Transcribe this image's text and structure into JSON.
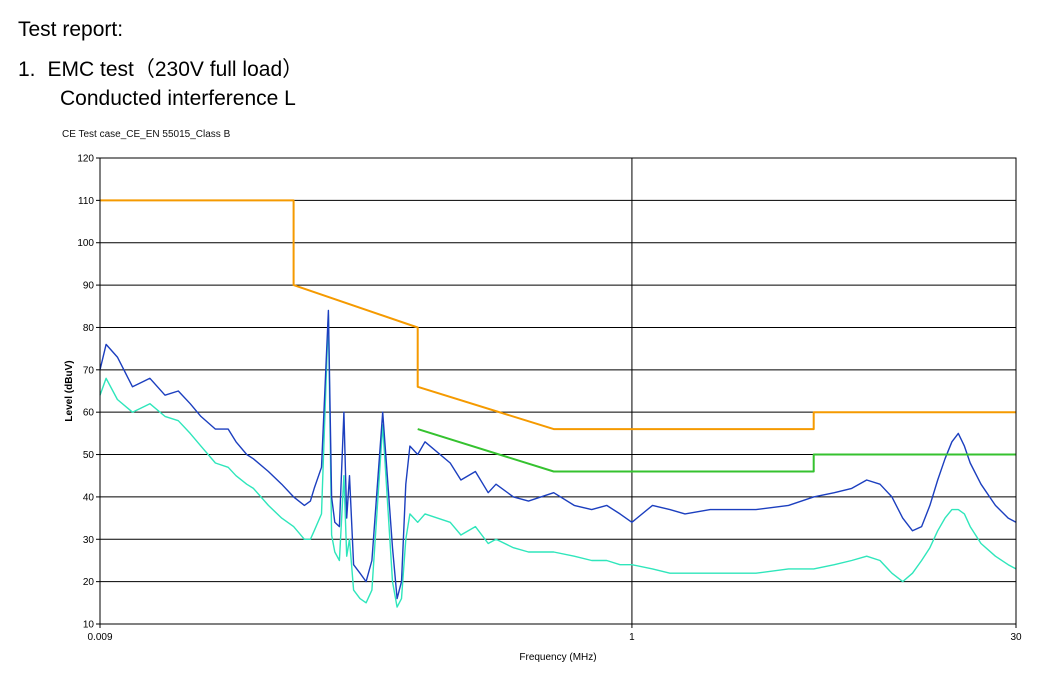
{
  "report": {
    "heading": "Test report:",
    "item_number": "1.",
    "item_title": "EMC test（230V full load）",
    "subtitle": "Conducted interference L"
  },
  "chart_data": {
    "type": "line",
    "title": "CE Test case_CE_EN 55015_Class B",
    "xlabel": "Frequency (MHz)",
    "ylabel": "Level (dBuV)",
    "xscale": "log",
    "xlim": [
      0.009,
      30
    ],
    "ylim": [
      10,
      120
    ],
    "yticks": [
      10,
      20,
      30,
      40,
      50,
      60,
      70,
      80,
      90,
      100,
      110,
      120
    ],
    "xtick_labels": [
      {
        "value": 0.009,
        "label": "0.009"
      },
      {
        "value": 1,
        "label": "1"
      },
      {
        "value": 30,
        "label": "30"
      }
    ],
    "grid": true,
    "colors": {
      "qp_limit": "#f59a00",
      "avg_limit": "#35c22f",
      "peak": "#1c3fbf",
      "average": "#2fe6bb",
      "grid": "#000000"
    },
    "series": [
      {
        "key": "qp_limit",
        "x": [
          0.009,
          0.05,
          0.05,
          0.15,
          0.15,
          0.5,
          0.5,
          5,
          5,
          30
        ],
        "y": [
          110,
          110,
          90,
          80,
          66,
          56,
          56,
          56,
          60,
          60
        ]
      },
      {
        "key": "avg_limit",
        "x": [
          0.15,
          0.5,
          0.5,
          5,
          5,
          30
        ],
        "y": [
          56,
          46,
          46,
          46,
          50,
          50
        ]
      },
      {
        "key": "peak",
        "x": [
          0.009,
          0.0095,
          0.0105,
          0.012,
          0.014,
          0.016,
          0.018,
          0.02,
          0.022,
          0.025,
          0.028,
          0.03,
          0.033,
          0.035,
          0.04,
          0.045,
          0.05,
          0.055,
          0.058,
          0.06,
          0.064,
          0.068,
          0.07,
          0.072,
          0.075,
          0.078,
          0.08,
          0.082,
          0.085,
          0.09,
          0.095,
          0.1,
          0.11,
          0.12,
          0.125,
          0.13,
          0.135,
          0.14,
          0.15,
          0.16,
          0.2,
          0.22,
          0.25,
          0.28,
          0.3,
          0.35,
          0.4,
          0.5,
          0.6,
          0.7,
          0.8,
          0.9,
          1.0,
          1.2,
          1.4,
          1.6,
          2,
          3,
          4,
          5,
          6,
          7,
          8,
          9,
          10,
          11,
          12,
          13,
          14,
          15,
          16,
          17,
          18,
          19,
          20,
          22,
          25,
          28,
          30
        ],
        "y": [
          70,
          76,
          73,
          66,
          68,
          64,
          65,
          62,
          59,
          56,
          56,
          53,
          50,
          49,
          46,
          43,
          40,
          38,
          39,
          42,
          47,
          84,
          40,
          34,
          33,
          60,
          35,
          45,
          24,
          22,
          20,
          25,
          60,
          28,
          16,
          20,
          43,
          52,
          50,
          53,
          48,
          44,
          46,
          41,
          43,
          40,
          39,
          41,
          38,
          37,
          38,
          36,
          34,
          38,
          37,
          36,
          37,
          37,
          38,
          40,
          41,
          42,
          44,
          43,
          40,
          35,
          32,
          33,
          38,
          44,
          49,
          53,
          55,
          52,
          48,
          43,
          38,
          35,
          34
        ]
      },
      {
        "key": "average",
        "x": [
          0.009,
          0.0095,
          0.0105,
          0.012,
          0.014,
          0.016,
          0.018,
          0.02,
          0.022,
          0.025,
          0.028,
          0.03,
          0.033,
          0.035,
          0.04,
          0.045,
          0.05,
          0.055,
          0.058,
          0.06,
          0.064,
          0.068,
          0.07,
          0.072,
          0.075,
          0.078,
          0.08,
          0.082,
          0.085,
          0.09,
          0.095,
          0.1,
          0.11,
          0.12,
          0.125,
          0.13,
          0.135,
          0.14,
          0.15,
          0.16,
          0.2,
          0.22,
          0.25,
          0.28,
          0.3,
          0.35,
          0.4,
          0.5,
          0.6,
          0.7,
          0.8,
          0.9,
          1.0,
          1.2,
          1.4,
          1.6,
          2,
          3,
          4,
          5,
          6,
          7,
          8,
          9,
          10,
          11,
          12,
          13,
          14,
          15,
          16,
          17,
          18,
          19,
          20,
          22,
          25,
          28,
          30
        ],
        "y": [
          64,
          68,
          63,
          60,
          62,
          59,
          58,
          55,
          52,
          48,
          47,
          45,
          43,
          42,
          38,
          35,
          33,
          30,
          30,
          32,
          36,
          83,
          31,
          27,
          25,
          45,
          26,
          30,
          18,
          16,
          15,
          18,
          57,
          20,
          14,
          16,
          30,
          36,
          34,
          36,
          34,
          31,
          33,
          29,
          30,
          28,
          27,
          27,
          26,
          25,
          25,
          24,
          24,
          23,
          22,
          22,
          22,
          22,
          23,
          23,
          24,
          25,
          26,
          25,
          22,
          20,
          22,
          25,
          28,
          32,
          35,
          37,
          37,
          36,
          33,
          29,
          26,
          24,
          23
        ]
      }
    ]
  }
}
